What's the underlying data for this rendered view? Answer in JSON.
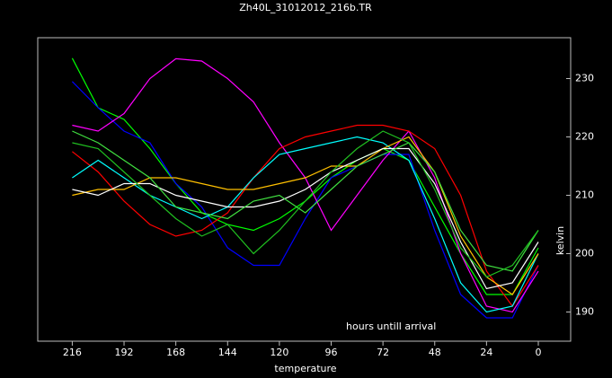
{
  "chart_data": {
    "type": "line",
    "title": "Zh40L_31012012_216b.TR",
    "x_label": "temperature",
    "y_label": "kelvin",
    "annotation": "hours untill arrival",
    "x": [
      216,
      204,
      192,
      180,
      168,
      156,
      144,
      132,
      120,
      108,
      96,
      84,
      72,
      60,
      48,
      36,
      24,
      12,
      0
    ],
    "xlim": [
      232,
      -15
    ],
    "xticks": [
      216,
      192,
      168,
      144,
      120,
      96,
      72,
      48,
      24,
      0
    ],
    "ylim": [
      185,
      237
    ],
    "yticks": [
      190,
      200,
      210,
      220,
      230
    ],
    "series": [
      {
        "color": "#00ff00",
        "values": [
          233.5,
          225,
          223,
          218,
          212,
          207,
          205,
          204,
          206,
          209,
          213,
          216,
          218,
          216,
          208,
          200,
          193,
          193,
          201
        ]
      },
      {
        "color": "#0000ff",
        "values": [
          229.5,
          225,
          221,
          219,
          212,
          208,
          201,
          198,
          198,
          206,
          213,
          215,
          217,
          217,
          204,
          193,
          189,
          189,
          198
        ]
      },
      {
        "color": "#ff00ff",
        "values": [
          222,
          221,
          224,
          230,
          233.4,
          233,
          230,
          226,
          219,
          213,
          204,
          210,
          216,
          221,
          213,
          200,
          191,
          190,
          197
        ]
      },
      {
        "color": "#ff0000",
        "values": [
          217.5,
          214,
          209,
          205,
          203,
          204,
          207,
          213,
          218,
          220,
          221,
          222,
          222,
          221,
          218,
          210,
          197,
          191,
          198
        ]
      },
      {
        "color": "#00ffff",
        "values": [
          213,
          216,
          213,
          210,
          208,
          206,
          208,
          213,
          217,
          218,
          219,
          220,
          219,
          216,
          206,
          195,
          190,
          191,
          200
        ]
      },
      {
        "color": "#ffc000",
        "values": [
          210,
          211,
          211,
          213,
          213,
          212,
          211,
          211,
          212,
          213,
          215,
          215,
          218,
          220,
          214,
          203,
          196,
          193,
          200
        ]
      },
      {
        "color": "#ffffff",
        "values": [
          211,
          210,
          212,
          212,
          210,
          209,
          208,
          208,
          209,
          211,
          214,
          216,
          218,
          218,
          212,
          202,
          194,
          195,
          202
        ]
      },
      {
        "color": "#40e040",
        "values": [
          221,
          219,
          216,
          213,
          208,
          207,
          206,
          209,
          210,
          207,
          211,
          215,
          217,
          219,
          214,
          204,
          198,
          197,
          204
        ]
      },
      {
        "color": "#20c020",
        "values": [
          219,
          218,
          214,
          210,
          206,
          203,
          205,
          200,
          204,
          209,
          214,
          218,
          221,
          219,
          211,
          201,
          196,
          198,
          204
        ]
      }
    ]
  }
}
